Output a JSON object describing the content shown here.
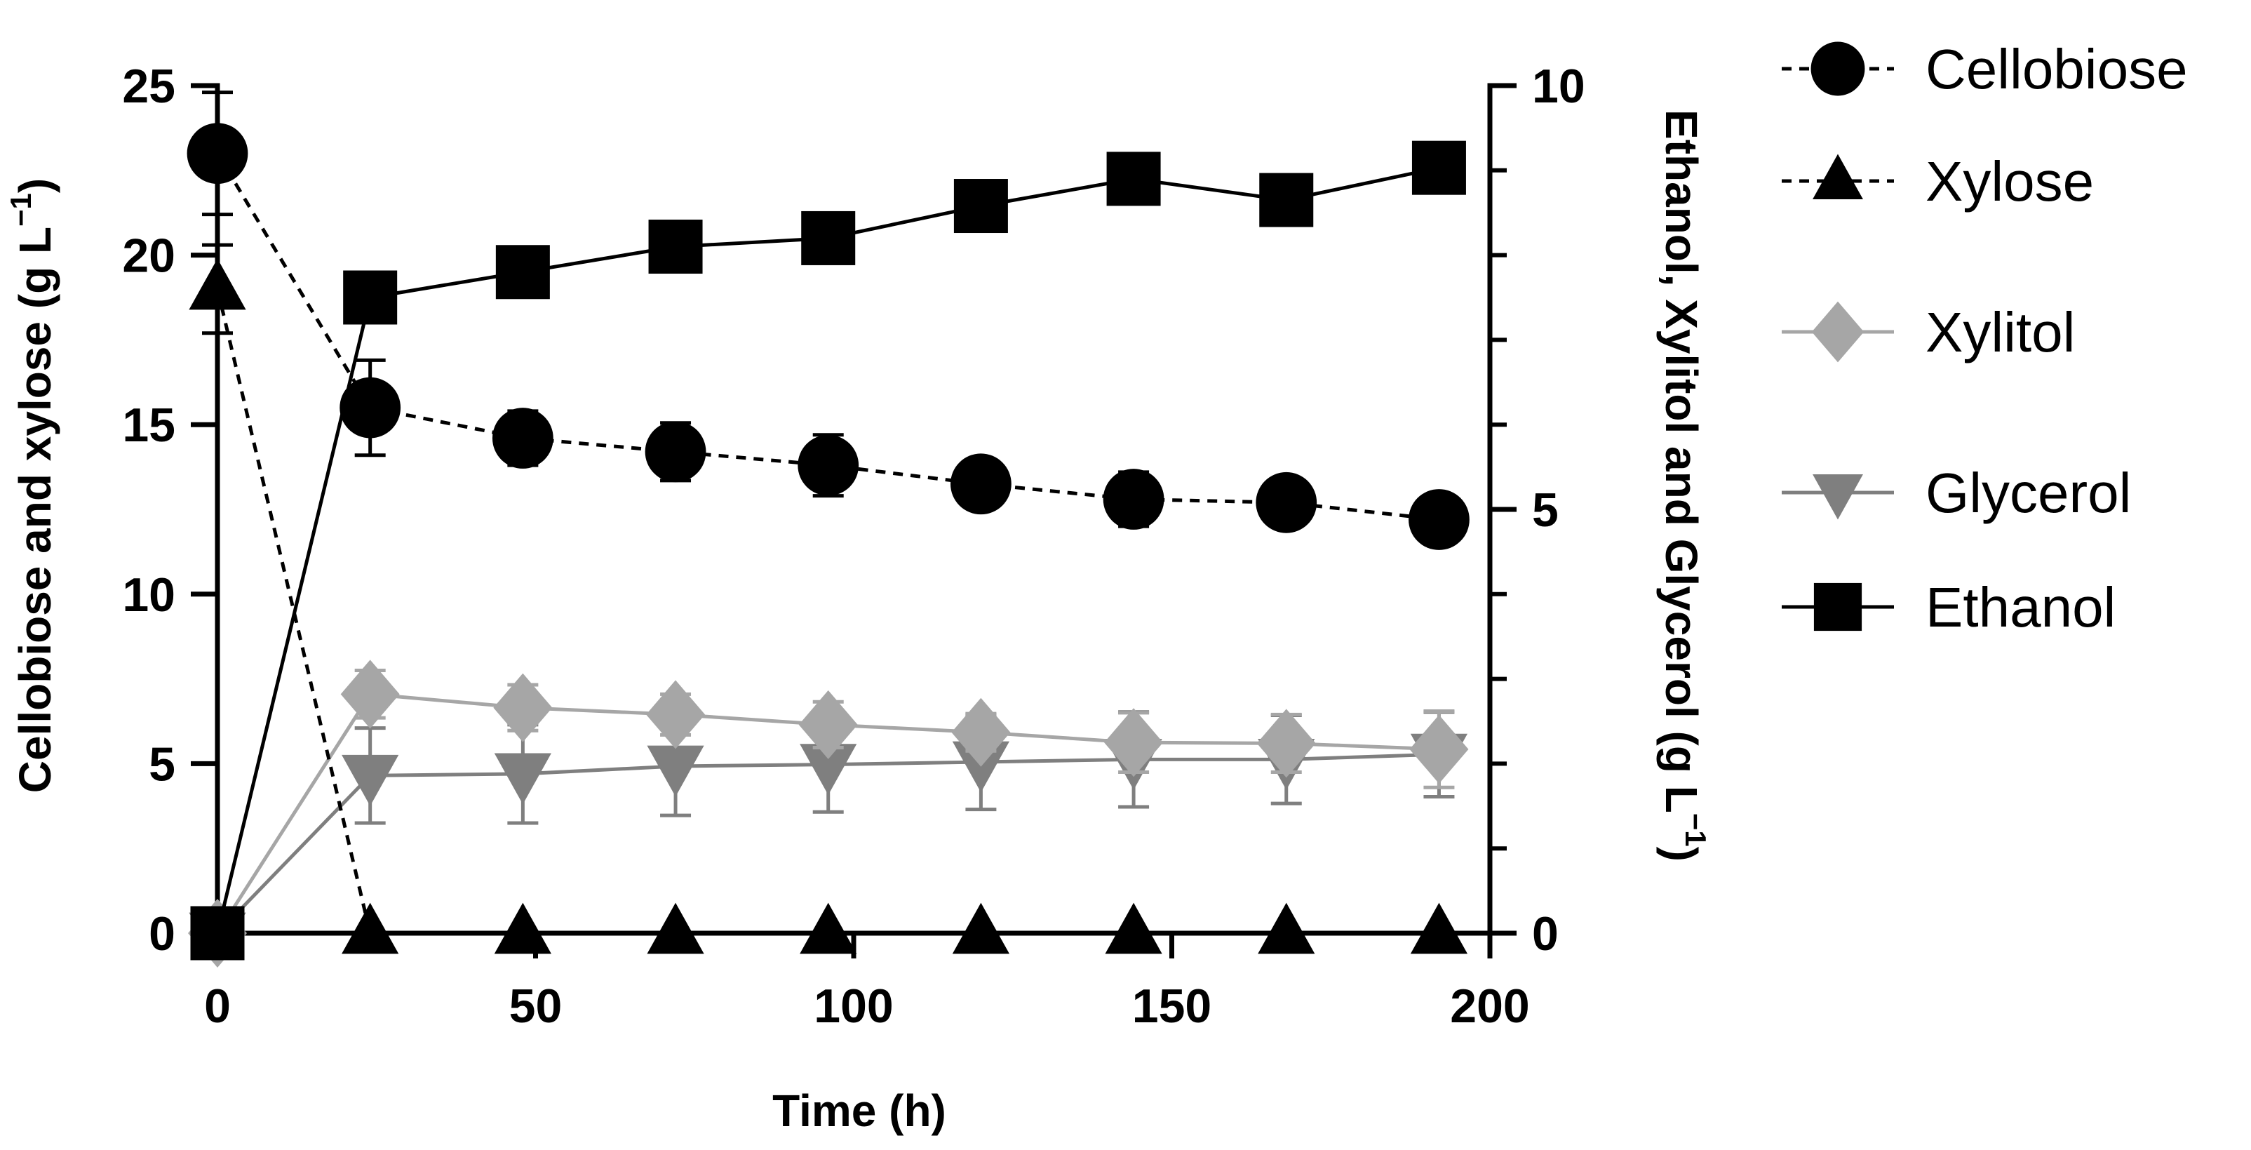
{
  "chart_data": {
    "type": "line",
    "xlabel": "Time (h)",
    "ylabel_left": {
      "text": "Cellobiose and xylose (g L",
      "sup": "−1",
      "close": ")"
    },
    "ylabel_right": {
      "text": "Ethanol, Xylitol and Glycerol (g L",
      "sup": "−1",
      "close": ")"
    },
    "xlim": [
      0,
      200
    ],
    "ylim_left": [
      0,
      25
    ],
    "ylim_right": [
      0,
      10
    ],
    "x_ticks": [
      "0",
      "50",
      "100",
      "150",
      "200"
    ],
    "left_ticks": [
      "0",
      "5",
      "10",
      "15",
      "20",
      "25"
    ],
    "right_ticks": [
      "0",
      "5",
      "10"
    ],
    "x": [
      0,
      24,
      48,
      72,
      96,
      120,
      144,
      168,
      192
    ],
    "legend_position": "right",
    "series": [
      {
        "name": "Cellobiose",
        "axis": "left",
        "marker": "circle",
        "line": "dashed",
        "color": "#000000",
        "values": [
          23.0,
          15.5,
          14.6,
          14.2,
          13.8,
          13.25,
          12.8,
          12.7,
          12.2
        ],
        "errors": [
          1.8,
          1.4,
          0.8,
          0.85,
          0.9,
          0.6,
          0.8,
          0.0,
          0.7
        ]
      },
      {
        "name": "Xylose",
        "axis": "left",
        "marker": "triangle-up",
        "line": "dashed",
        "color": "#000000",
        "values": [
          19.0,
          0,
          0,
          0,
          0,
          0,
          0,
          0,
          0
        ],
        "errors": [
          1.3,
          0,
          0,
          0,
          0,
          0,
          0,
          0,
          0
        ]
      },
      {
        "name": "Xylitol",
        "axis": "right",
        "marker": "diamond",
        "line": "solid",
        "color": "#a6a6a6",
        "values": [
          0,
          2.82,
          2.66,
          2.58,
          2.46,
          2.37,
          2.25,
          2.24,
          2.17
        ],
        "errors": [
          0,
          0.28,
          0.27,
          0.24,
          0.27,
          0.22,
          0.35,
          0.34,
          0.45
        ]
      },
      {
        "name": "Glycerol",
        "axis": "right",
        "marker": "triangle-down",
        "line": "solid",
        "color": "#7f7f7f",
        "values": [
          0,
          1.86,
          1.88,
          1.97,
          1.99,
          2.02,
          2.05,
          2.05,
          2.11
        ],
        "errors": [
          0,
          0.56,
          0.58,
          0.58,
          0.56,
          0.56,
          0.56,
          0.52,
          0.5
        ]
      },
      {
        "name": "Ethanol",
        "axis": "right",
        "marker": "square",
        "line": "solid",
        "color": "#000000",
        "values": [
          0,
          7.5,
          7.8,
          8.1,
          8.2,
          8.58,
          8.9,
          8.65,
          9.03
        ],
        "errors": [
          0,
          0,
          0,
          0,
          0,
          0,
          0,
          0,
          0
        ]
      }
    ]
  }
}
